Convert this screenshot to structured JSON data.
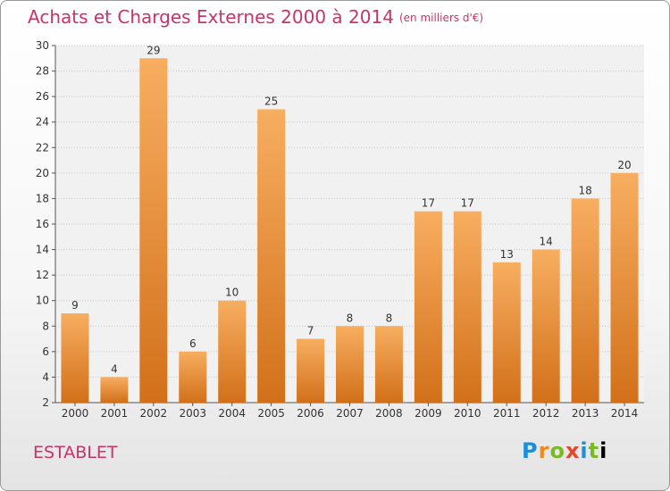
{
  "title": "Achats et Charges Externes 2000 à 2014",
  "unit": "(en milliers d'€)",
  "commune": "ESTABLET",
  "logo": [
    "P",
    "r",
    "o",
    "x",
    "i",
    "t",
    "i"
  ],
  "colors": {
    "bar": "#f0922e",
    "bar_light": "#f7ae60",
    "bar_dark": "#d2701a",
    "title": "#c8346a"
  },
  "chart_data": {
    "type": "bar",
    "categories": [
      "2000",
      "2001",
      "2002",
      "2003",
      "2004",
      "2005",
      "2006",
      "2007",
      "2008",
      "2009",
      "2010",
      "2011",
      "2012",
      "2013",
      "2014"
    ],
    "values": [
      9,
      4,
      29,
      6,
      10,
      25,
      7,
      8,
      8,
      17,
      17,
      13,
      14,
      18,
      20
    ],
    "ylim": [
      2,
      30
    ],
    "yticks": [
      2,
      4,
      6,
      8,
      10,
      12,
      14,
      16,
      18,
      20,
      22,
      24,
      26,
      28,
      30
    ],
    "grid": true
  }
}
